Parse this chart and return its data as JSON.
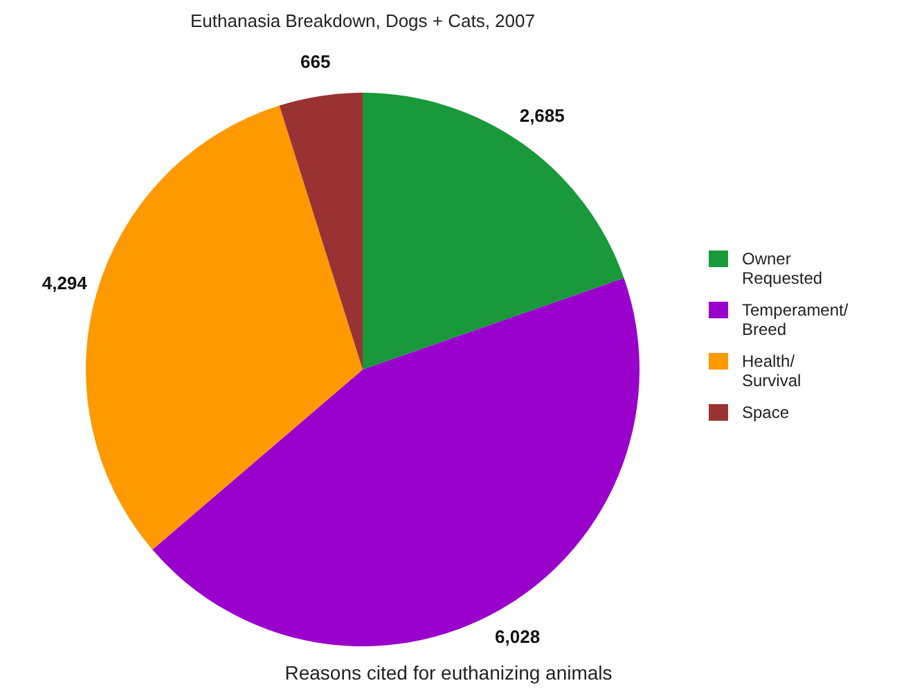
{
  "chart_data": {
    "type": "pie",
    "title": "Euthanasia Breakdown, Dogs + Cats, 2007",
    "xlabel": "Reasons cited for euthanizing animals",
    "categories": [
      "Owner Requested",
      "Temperament/Breed",
      "Health/Survival",
      "Space"
    ],
    "values": [
      2685,
      6028,
      4294,
      665
    ],
    "colors": [
      "#18993a",
      "#9900cc",
      "#ff9900",
      "#993333"
    ],
    "value_labels": [
      "2,685",
      "6,028",
      "4,294",
      "665"
    ],
    "legend": "right"
  }
}
